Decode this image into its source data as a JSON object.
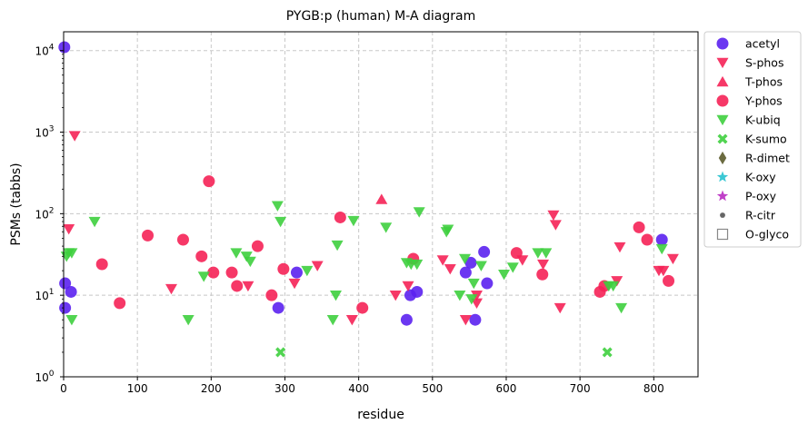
{
  "chart_data": {
    "type": "scatter",
    "title": "PYGB:p (human) M-A diagram",
    "xlabel": "residue",
    "ylabel": "PSMs (tabbs)",
    "xlim": [
      0,
      860
    ],
    "ylim": [
      1,
      17000
    ],
    "yscale": "log",
    "grid": true,
    "legend_position": "outside-right",
    "x_ticks": [
      "0",
      "100",
      "200",
      "300",
      "400",
      "500",
      "600",
      "700",
      "800"
    ],
    "x_tick_values": [
      0,
      100,
      200,
      300,
      400,
      500,
      600,
      700,
      800
    ],
    "y_tick_values": [
      1,
      10,
      100,
      1000,
      10000
    ],
    "y_tick_exponents": [
      "0",
      "1",
      "2",
      "3",
      "4"
    ],
    "y_tick_base": "10",
    "series": [
      {
        "name": "acetyl",
        "color": "#5b21f0",
        "marker": "circle",
        "points": [
          [
            1,
            11000
          ],
          [
            2,
            14
          ],
          [
            2,
            7
          ],
          [
            10,
            11
          ],
          [
            291,
            7
          ],
          [
            316,
            19
          ],
          [
            465,
            5
          ],
          [
            470,
            10
          ],
          [
            479,
            11
          ],
          [
            545,
            19
          ],
          [
            552,
            25
          ],
          [
            558,
            5
          ],
          [
            570,
            34
          ],
          [
            574,
            14
          ],
          [
            811,
            48
          ]
        ]
      },
      {
        "name": "S-phos",
        "color": "#f52257",
        "marker": "triangle-down",
        "points": [
          [
            7,
            65
          ],
          [
            15,
            900
          ],
          [
            146,
            12
          ],
          [
            250,
            13
          ],
          [
            313,
            14
          ],
          [
            344,
            23
          ],
          [
            391,
            5
          ],
          [
            450,
            10
          ],
          [
            467,
            13
          ],
          [
            514,
            27
          ],
          [
            524,
            21
          ],
          [
            545,
            5
          ],
          [
            560,
            8
          ],
          [
            560,
            10
          ],
          [
            622,
            27
          ],
          [
            650,
            24
          ],
          [
            664,
            96
          ],
          [
            667,
            73
          ],
          [
            673,
            7
          ],
          [
            750,
            15
          ],
          [
            754,
            39
          ],
          [
            807,
            20
          ],
          [
            813,
            20
          ],
          [
            826,
            28
          ]
        ]
      },
      {
        "name": "T-phos",
        "color": "#f52257",
        "marker": "triangle-up",
        "points": [
          [
            431,
            150
          ]
        ]
      },
      {
        "name": "Y-phos",
        "color": "#f52257",
        "marker": "circle",
        "points": [
          [
            52,
            24
          ],
          [
            76,
            8
          ],
          [
            114,
            54
          ],
          [
            162,
            48
          ],
          [
            187,
            30
          ],
          [
            197,
            250
          ],
          [
            203,
            19
          ],
          [
            228,
            19
          ],
          [
            235,
            13
          ],
          [
            263,
            40
          ],
          [
            282,
            10
          ],
          [
            298,
            21
          ],
          [
            375,
            90
          ],
          [
            405,
            7
          ],
          [
            474,
            28
          ],
          [
            614,
            33
          ],
          [
            649,
            18
          ],
          [
            727,
            11
          ],
          [
            733,
            13
          ],
          [
            780,
            68
          ],
          [
            791,
            48
          ],
          [
            820,
            15
          ]
        ]
      },
      {
        "name": "K-ubiq",
        "color": "#3ecf3e",
        "marker": "triangle-down",
        "points": [
          [
            4,
            30
          ],
          [
            7,
            33
          ],
          [
            11,
            33
          ],
          [
            11,
            5
          ],
          [
            42,
            80
          ],
          [
            169,
            5
          ],
          [
            190,
            17
          ],
          [
            234,
            33
          ],
          [
            248,
            30
          ],
          [
            253,
            26
          ],
          [
            290,
            125
          ],
          [
            294,
            80
          ],
          [
            330,
            20
          ],
          [
            365,
            5
          ],
          [
            369,
            10
          ],
          [
            371,
            41
          ],
          [
            393,
            82
          ],
          [
            437,
            68
          ],
          [
            465,
            25
          ],
          [
            471,
            24
          ],
          [
            479,
            24
          ],
          [
            482,
            105
          ],
          [
            519,
            60
          ],
          [
            521,
            64
          ],
          [
            537,
            10
          ],
          [
            544,
            28
          ],
          [
            553,
            9
          ],
          [
            556,
            14
          ],
          [
            566,
            23
          ],
          [
            597,
            18
          ],
          [
            609,
            22
          ],
          [
            643,
            33
          ],
          [
            654,
            33
          ],
          [
            739,
            13
          ],
          [
            745,
            13
          ],
          [
            756,
            7
          ],
          [
            811,
            37
          ]
        ]
      },
      {
        "name": "K-sumo",
        "color": "#3ecf3e",
        "marker": "x",
        "points": [
          [
            294,
            2
          ],
          [
            737,
            2
          ]
        ]
      },
      {
        "name": "R-dimet",
        "color": "#6b6b40",
        "marker": "diamond",
        "points": []
      },
      {
        "name": "K-oxy",
        "color": "#3cc8d4",
        "marker": "star",
        "points": []
      },
      {
        "name": "P-oxy",
        "color": "#c040c8",
        "marker": "star",
        "points": []
      },
      {
        "name": "R-citr",
        "color": "#666666",
        "marker": "small-circle",
        "points": []
      },
      {
        "name": "O-glyco",
        "color": "#888888",
        "marker": "open-square",
        "points": []
      }
    ]
  }
}
